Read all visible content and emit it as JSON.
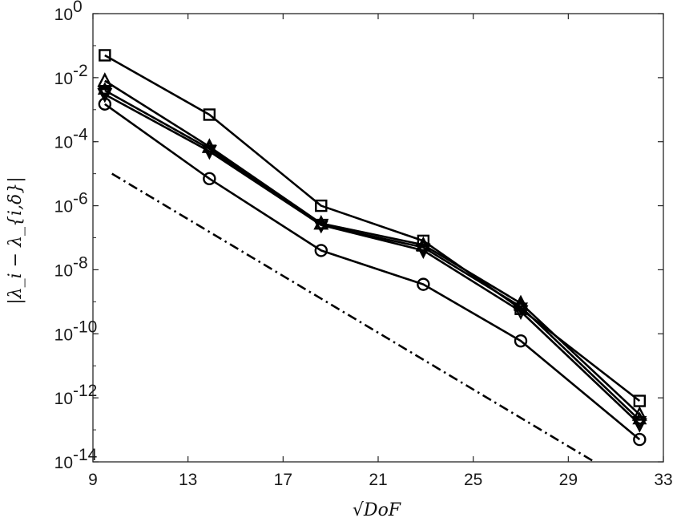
{
  "chart_data": {
    "type": "line",
    "xlabel": "√DoF",
    "ylabel": "|λ_i − λ_{i,δ}|",
    "xlim": [
      9,
      33
    ],
    "ylim_log10": [
      -14,
      0
    ],
    "y_scale": "log",
    "grid": false,
    "x_ticks": [
      9,
      13,
      17,
      21,
      25,
      29,
      33
    ],
    "y_tick_exponents": [
      -14,
      -12,
      -10,
      -8,
      -6,
      -4,
      -2,
      0
    ],
    "y_tick_base": "10",
    "x": [
      9.5,
      13.9,
      18.6,
      22.9,
      27.0,
      32.0
    ],
    "series": [
      {
        "marker": "square",
        "values": [
          0.05,
          0.0007,
          1e-06,
          8e-08,
          6e-10,
          8e-13
        ]
      },
      {
        "marker": "triangle-up",
        "values": [
          0.008,
          7e-05,
          2.8e-07,
          6e-08,
          9e-10,
          3e-13
        ]
      },
      {
        "marker": "hexagram",
        "values": [
          0.004,
          6e-05,
          2.5e-07,
          5e-08,
          7e-10,
          2e-13
        ]
      },
      {
        "marker": "triangle-down",
        "values": [
          0.003,
          5e-05,
          2.5e-07,
          4e-08,
          5e-10,
          1.5e-13
        ]
      },
      {
        "marker": "circle",
        "values": [
          0.0015,
          7e-06,
          4e-08,
          3.5e-09,
          6e-11,
          5e-14
        ]
      }
    ],
    "reference_line": {
      "style": "dash-dot",
      "x": [
        9.8,
        30.1
      ],
      "values": [
        1e-05,
        1e-14
      ]
    },
    "colors": {
      "line": "#000000",
      "axis": "#262626"
    }
  }
}
